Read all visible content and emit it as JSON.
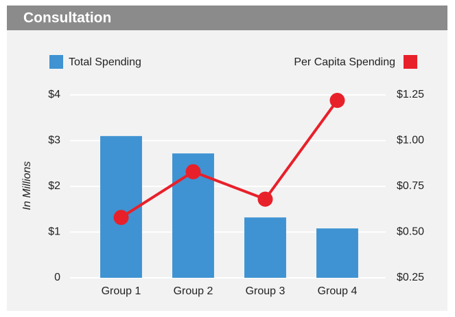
{
  "chart_data": {
    "type": "combo",
    "title": "Consultation",
    "ylabel": "In Millions",
    "categories": [
      "Group 1",
      "Group 2",
      "Group 3",
      "Group 4"
    ],
    "series": [
      {
        "name": "Total Spending",
        "type": "bar",
        "color": "#3f93d2",
        "values": [
          3.1,
          2.72,
          1.32,
          1.08
        ]
      },
      {
        "name": "Per Capita Spending",
        "type": "line",
        "axis": "y2",
        "color": "#e8202a",
        "values": [
          0.58,
          0.83,
          0.68,
          1.22
        ]
      }
    ],
    "ylim": [
      0,
      4
    ],
    "yticks": [
      0,
      {
        "value": 1,
        "label": "$1"
      },
      {
        "value": 2,
        "label": "$2"
      },
      {
        "value": 3,
        "label": "$3"
      },
      {
        "value": 4,
        "label": "$4"
      }
    ],
    "y2lim": [
      0.25,
      1.25
    ],
    "y2ticks": [
      {
        "value": 0.25,
        "label": "$0.25"
      },
      {
        "value": 0.5,
        "label": "$0.50"
      },
      {
        "value": 0.75,
        "label": "$0.75"
      },
      {
        "value": 1.0,
        "label": "$1.00"
      },
      {
        "value": 1.25,
        "label": "$1.25"
      }
    ],
    "grid": true
  }
}
